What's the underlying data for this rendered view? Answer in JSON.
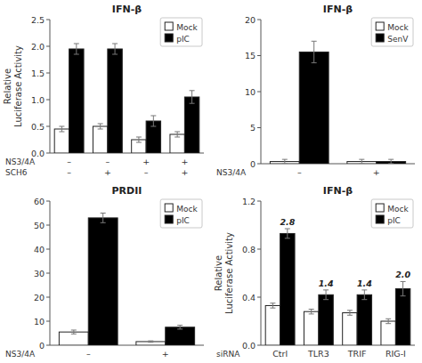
{
  "chart_data": [
    {
      "type": "bar",
      "title": "IFN-β",
      "ylabel": "Relative\nLuciferase Activity",
      "xlabel": "NS3/4A\nSCH6",
      "categories": [
        "–\n–",
        "–\n+",
        "+\n–",
        "+\n+"
      ],
      "series": [
        {
          "name": "Mock",
          "color": "#ffffff",
          "values": [
            0.45,
            0.5,
            0.25,
            0.35
          ],
          "errors": [
            0.05,
            0.05,
            0.05,
            0.05
          ]
        },
        {
          "name": "pIC",
          "color": "#000000",
          "values": [
            1.95,
            1.95,
            0.6,
            1.05
          ],
          "errors": [
            0.1,
            0.1,
            0.1,
            0.12
          ]
        }
      ],
      "ylim": [
        0,
        2.5
      ],
      "yticks": [
        {
          "value": 0,
          "label": "0.0"
        },
        0.5,
        {
          "value": 1.0,
          "label": "1.0"
        },
        1.5,
        {
          "value": 2.0,
          "label": "2.0"
        },
        2.5
      ],
      "legend": "upper right"
    },
    {
      "type": "bar",
      "title": "IFN-β",
      "xlabel": "NS3/4A",
      "categories": [
        "–",
        "+"
      ],
      "series": [
        {
          "name": "Mock",
          "color": "#ffffff",
          "values": [
            0.3,
            0.3
          ],
          "errors": [
            0.3,
            0.3
          ]
        },
        {
          "name": "SenV",
          "color": "#000000",
          "values": [
            15.5,
            0.3
          ],
          "errors": [
            1.5,
            0.3
          ]
        }
      ],
      "ylim": [
        0,
        20
      ],
      "yticks": [
        0,
        5,
        10,
        15,
        20
      ],
      "legend": "upper right"
    },
    {
      "type": "bar",
      "title": "PRDII",
      "xlabel": "NS3/4A",
      "categories": [
        "–",
        "+"
      ],
      "series": [
        {
          "name": "Mock",
          "color": "#ffffff",
          "values": [
            5.5,
            1.5
          ],
          "errors": [
            0.8,
            0.3
          ]
        },
        {
          "name": "pIC",
          "color": "#000000",
          "values": [
            53.0,
            7.5
          ],
          "errors": [
            2.0,
            0.8
          ]
        }
      ],
      "ylim": [
        0,
        60
      ],
      "yticks": [
        0,
        10,
        20,
        30,
        40,
        50,
        60
      ],
      "legend": "upper right"
    },
    {
      "type": "bar",
      "title": "IFN-β",
      "ylabel": "Relative\nLuciferase Activity",
      "xlabel": "siRNA",
      "categories": [
        "Ctrl",
        "TLR3",
        "TRIF",
        "RIG-I"
      ],
      "series": [
        {
          "name": "Mock",
          "color": "#ffffff",
          "values": [
            0.33,
            0.28,
            0.27,
            0.2
          ],
          "errors": [
            0.02,
            0.02,
            0.02,
            0.02
          ]
        },
        {
          "name": "pIC",
          "color": "#000000",
          "values": [
            0.93,
            0.42,
            0.42,
            0.47
          ],
          "errors": [
            0.04,
            0.04,
            0.04,
            0.06
          ]
        }
      ],
      "annotations": [
        "2.8",
        "1.4",
        "1.4",
        "2.0"
      ],
      "ylim": [
        0,
        1.2
      ],
      "yticks": [
        {
          "value": 0,
          "label": "0.0"
        },
        0.4,
        0.8,
        1.2
      ],
      "legend": "upper right"
    }
  ]
}
